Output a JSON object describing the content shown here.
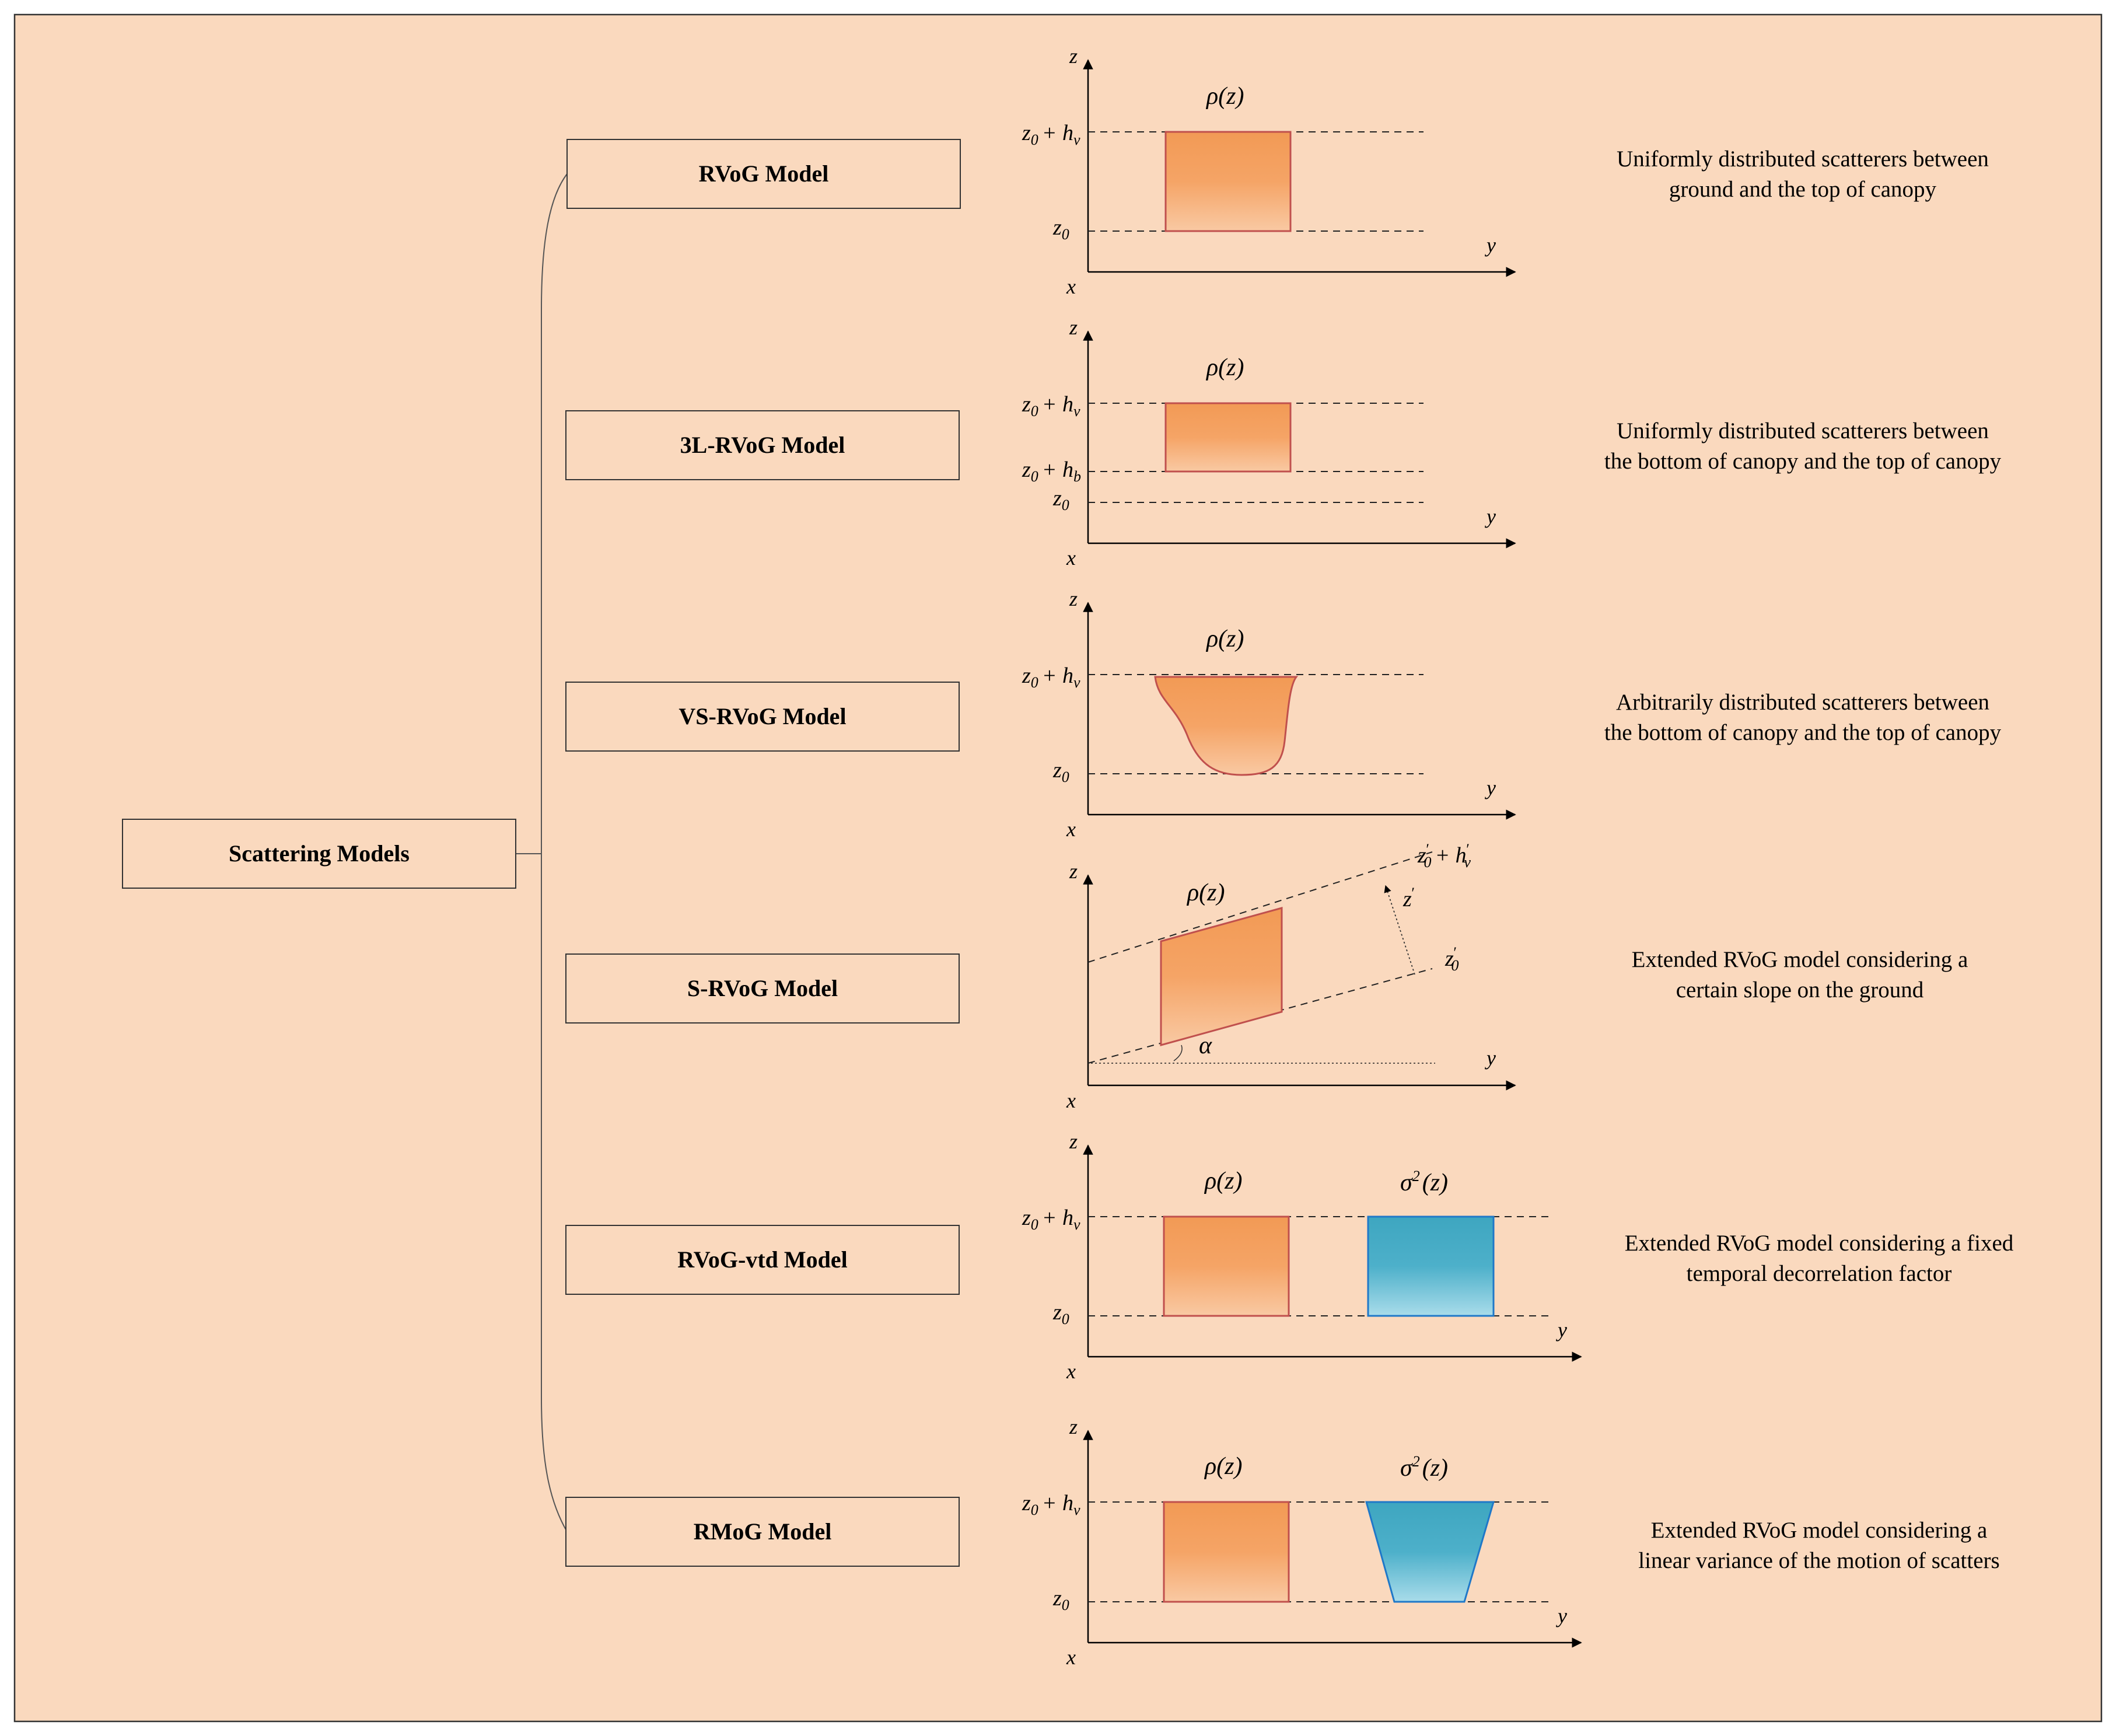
{
  "root": {
    "label": "Scattering Models"
  },
  "axis_labels": {
    "x": "x",
    "y": "y",
    "z": "z"
  },
  "math": {
    "rho": "ρ(z)",
    "sigma": "σ",
    "sigma_sup": "2",
    "sigma_arg": "(z)",
    "z0": "z",
    "z0_sub": "0",
    "plus_h": "+ h",
    "hv_sub": "v",
    "hb_sub": "b",
    "alpha": "α",
    "z_prime": "z",
    "prime": "′",
    "h_prime": "h"
  },
  "models": [
    {
      "name": "RVoG Model",
      "desc": [
        "Uniformly distributed scatterers between",
        "ground and the top of canopy"
      ]
    },
    {
      "name": "3L-RVoG Model",
      "desc": [
        "Uniformly distributed scatterers between",
        "the bottom of canopy and the top of canopy"
      ]
    },
    {
      "name": "VS-RVoG Model",
      "desc": [
        "Arbitrarily distributed scatterers between",
        "the bottom of canopy and the top of canopy"
      ]
    },
    {
      "name": "S-RVoG Model",
      "desc": [
        "Extended RVoG model considering a",
        "certain slope on the ground"
      ]
    },
    {
      "name": "RVoG-vtd Model",
      "desc": [
        "Extended RVoG model considering a fixed",
        "temporal decorrelation factor"
      ]
    },
    {
      "name": "RMoG Model",
      "desc": [
        "Extended RVoG model considering a",
        "linear variance of the motion of scatters"
      ]
    }
  ],
  "colors": {
    "background": "#FAD9BE",
    "orange_fill": "#F5A160",
    "orange_stroke": "#C0504D",
    "blue_fill": "#45ACC6",
    "blue_stroke": "#1F78C8"
  }
}
